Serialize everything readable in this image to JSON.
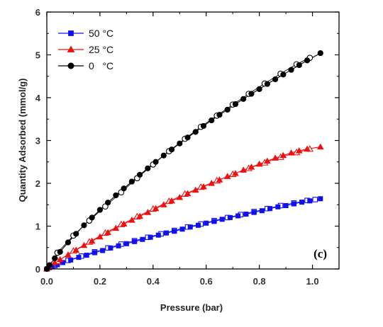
{
  "chart_data": {
    "type": "scatter",
    "xlabel": "Pressure (bar)",
    "ylabel": "Quantity Adsorbed (mmol/g)",
    "xlim": [
      0.0,
      1.1
    ],
    "ylim": [
      0,
      6
    ],
    "x_ticks": [
      "0.0",
      "0.2",
      "0.4",
      "0.6",
      "0.8",
      "1.0"
    ],
    "y_ticks": [
      "0",
      "1",
      "2",
      "3",
      "4",
      "5",
      "6"
    ],
    "panel_label": "(c)",
    "grid": false,
    "legend_position": "top-left",
    "series": [
      {
        "name": "50 °C",
        "color": "#1010ee",
        "marker": "square",
        "adsorption": {
          "x": [
            0.0,
            0.01,
            0.02,
            0.04,
            0.06,
            0.09,
            0.12,
            0.15,
            0.18,
            0.21,
            0.24,
            0.27,
            0.3,
            0.33,
            0.36,
            0.39,
            0.42,
            0.45,
            0.48,
            0.51,
            0.54,
            0.57,
            0.6,
            0.63,
            0.66,
            0.69,
            0.72,
            0.75,
            0.78,
            0.81,
            0.84,
            0.87,
            0.9,
            0.93,
            0.96,
            0.99,
            1.03
          ],
          "y": [
            0.0,
            0.03,
            0.06,
            0.1,
            0.15,
            0.21,
            0.27,
            0.32,
            0.38,
            0.43,
            0.49,
            0.54,
            0.59,
            0.64,
            0.69,
            0.74,
            0.79,
            0.84,
            0.88,
            0.93,
            0.98,
            1.02,
            1.07,
            1.11,
            1.16,
            1.2,
            1.24,
            1.28,
            1.32,
            1.36,
            1.41,
            1.45,
            1.48,
            1.52,
            1.56,
            1.59,
            1.64
          ]
        },
        "desorption": {
          "x": [
            0.03,
            0.08,
            0.13,
            0.18,
            0.23,
            0.28,
            0.33,
            0.38,
            0.43,
            0.48,
            0.53,
            0.58,
            0.63,
            0.68,
            0.73,
            0.78,
            0.83,
            0.88,
            0.93,
            0.98,
            1.01
          ],
          "y": [
            0.08,
            0.2,
            0.3,
            0.4,
            0.49,
            0.58,
            0.66,
            0.74,
            0.82,
            0.9,
            0.98,
            1.05,
            1.13,
            1.2,
            1.27,
            1.34,
            1.41,
            1.48,
            1.54,
            1.6,
            1.62
          ]
        }
      },
      {
        "name": "25 °C",
        "color": "#ee1111",
        "marker": "triangle",
        "adsorption": {
          "x": [
            0.0,
            0.01,
            0.03,
            0.05,
            0.08,
            0.11,
            0.14,
            0.17,
            0.2,
            0.23,
            0.26,
            0.29,
            0.32,
            0.35,
            0.38,
            0.41,
            0.44,
            0.47,
            0.5,
            0.53,
            0.56,
            0.59,
            0.62,
            0.65,
            0.68,
            0.71,
            0.74,
            0.77,
            0.8,
            0.83,
            0.86,
            0.89,
            0.92,
            0.95,
            0.98,
            1.03
          ],
          "y": [
            0.0,
            0.06,
            0.15,
            0.22,
            0.33,
            0.44,
            0.55,
            0.65,
            0.75,
            0.85,
            0.95,
            1.05,
            1.14,
            1.23,
            1.32,
            1.41,
            1.5,
            1.59,
            1.67,
            1.76,
            1.84,
            1.92,
            2.0,
            2.08,
            2.16,
            2.23,
            2.31,
            2.38,
            2.45,
            2.52,
            2.59,
            2.65,
            2.71,
            2.76,
            2.8,
            2.85
          ]
        },
        "desorption": {
          "x": [
            0.04,
            0.1,
            0.16,
            0.22,
            0.28,
            0.34,
            0.4,
            0.46,
            0.52,
            0.58,
            0.64,
            0.7,
            0.76,
            0.82,
            0.88,
            0.94,
            0.99
          ],
          "y": [
            0.18,
            0.42,
            0.63,
            0.84,
            1.04,
            1.22,
            1.4,
            1.58,
            1.75,
            1.91,
            2.06,
            2.21,
            2.35,
            2.48,
            2.61,
            2.72,
            2.8
          ]
        }
      },
      {
        "name": "0   °C",
        "color": "#000000",
        "marker": "circle",
        "adsorption": {
          "x": [
            0.0,
            0.01,
            0.03,
            0.05,
            0.08,
            0.11,
            0.14,
            0.17,
            0.2,
            0.23,
            0.26,
            0.29,
            0.32,
            0.35,
            0.38,
            0.41,
            0.44,
            0.47,
            0.5,
            0.53,
            0.56,
            0.59,
            0.62,
            0.65,
            0.68,
            0.71,
            0.74,
            0.77,
            0.8,
            0.83,
            0.86,
            0.89,
            0.92,
            0.95,
            0.98,
            1.03
          ],
          "y": [
            0.0,
            0.09,
            0.25,
            0.4,
            0.62,
            0.82,
            1.02,
            1.2,
            1.38,
            1.55,
            1.72,
            1.88,
            2.04,
            2.2,
            2.35,
            2.5,
            2.65,
            2.79,
            2.93,
            3.07,
            3.2,
            3.34,
            3.47,
            3.6,
            3.72,
            3.85,
            3.97,
            4.09,
            4.2,
            4.32,
            4.43,
            4.54,
            4.65,
            4.76,
            4.87,
            5.04
          ]
        },
        "desorption": {
          "x": [
            0.04,
            0.1,
            0.16,
            0.22,
            0.28,
            0.34,
            0.4,
            0.46,
            0.52,
            0.58,
            0.64,
            0.7,
            0.76,
            0.82,
            0.88,
            0.94,
            0.99
          ],
          "y": [
            0.38,
            0.78,
            1.13,
            1.46,
            1.79,
            2.12,
            2.44,
            2.75,
            3.04,
            3.32,
            3.58,
            3.84,
            4.09,
            4.33,
            4.56,
            4.78,
            4.93
          ]
        }
      }
    ]
  }
}
